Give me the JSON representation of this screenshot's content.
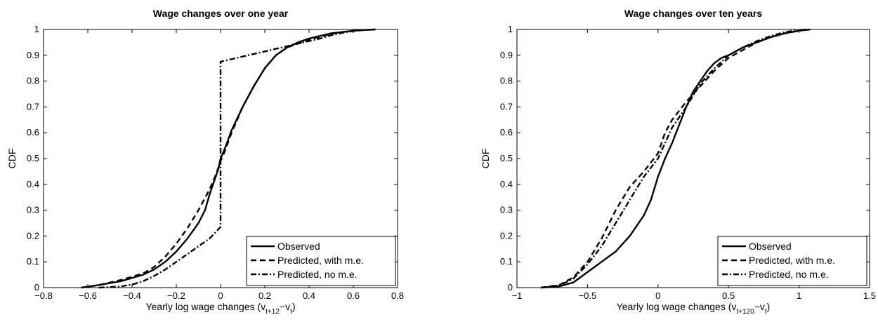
{
  "chart_data": [
    {
      "type": "line",
      "title": "Wage changes over one year",
      "xlabel": {
        "main": "Yearly log wage changes (v",
        "sub1": "t+12",
        "mid": "−v",
        "sub2": "t",
        "end": ")"
      },
      "ylabel": "CDF",
      "xlim": [
        -0.8,
        0.8
      ],
      "ylim": [
        0,
        1
      ],
      "xticks": [
        -0.8,
        -0.6,
        -0.4,
        -0.2,
        0,
        0.2,
        0.4,
        0.6,
        0.8
      ],
      "xtick_labels": [
        "−0.8",
        "−0.6",
        "−0.4",
        "−0.2",
        "0",
        "0.2",
        "0.4",
        "0.6",
        "0.8"
      ],
      "yticks": [
        0,
        0.1,
        0.2,
        0.3,
        0.4,
        0.5,
        0.6,
        0.7,
        0.8,
        0.9,
        1
      ],
      "ytick_labels": [
        "0",
        "0.1",
        "0.2",
        "0.3",
        "0.4",
        "0.5",
        "0.6",
        "0.7",
        "0.8",
        "0.9",
        "1"
      ],
      "grid": false,
      "legend_position": "bottom-right",
      "series": [
        {
          "name": "Observed",
          "style": "solid",
          "x": [
            -0.63,
            -0.55,
            -0.45,
            -0.35,
            -0.3,
            -0.25,
            -0.2,
            -0.15,
            -0.1,
            -0.07,
            -0.05,
            -0.03,
            -0.01,
            0,
            0.02,
            0.05,
            0.1,
            0.15,
            0.2,
            0.25,
            0.3,
            0.35,
            0.4,
            0.45,
            0.5,
            0.55,
            0.6,
            0.65,
            0.7
          ],
          "y": [
            0,
            0.01,
            0.025,
            0.05,
            0.07,
            0.1,
            0.14,
            0.19,
            0.25,
            0.3,
            0.36,
            0.41,
            0.46,
            0.5,
            0.54,
            0.61,
            0.7,
            0.78,
            0.85,
            0.9,
            0.93,
            0.95,
            0.965,
            0.975,
            0.985,
            0.99,
            0.995,
            0.998,
            1
          ]
        },
        {
          "name": "Predicted, with m.e.",
          "style": "dashed",
          "x": [
            -0.63,
            -0.55,
            -0.45,
            -0.35,
            -0.3,
            -0.25,
            -0.2,
            -0.15,
            -0.1,
            -0.05,
            -0.02,
            0,
            0.02,
            0.05,
            0.1,
            0.15,
            0.2,
            0.25,
            0.3,
            0.35,
            0.4,
            0.45,
            0.5,
            0.55,
            0.6,
            0.65,
            0.7
          ],
          "y": [
            0,
            0.01,
            0.03,
            0.055,
            0.08,
            0.12,
            0.17,
            0.23,
            0.3,
            0.38,
            0.44,
            0.49,
            0.53,
            0.6,
            0.7,
            0.78,
            0.85,
            0.9,
            0.93,
            0.945,
            0.96,
            0.972,
            0.983,
            0.99,
            0.995,
            0.998,
            1
          ]
        },
        {
          "name": "Predicted, no m.e.",
          "style": "dashdot",
          "x": [
            -0.55,
            -0.45,
            -0.4,
            -0.35,
            -0.3,
            -0.25,
            -0.2,
            -0.15,
            -0.1,
            -0.05,
            0,
            0,
            0.1,
            0.2,
            0.3,
            0.35,
            0.4,
            0.45,
            0.5,
            0.55,
            0.6,
            0.65,
            0.7
          ],
          "y": [
            0,
            0.005,
            0.012,
            0.025,
            0.045,
            0.07,
            0.1,
            0.13,
            0.16,
            0.19,
            0.235,
            0.875,
            0.895,
            0.915,
            0.935,
            0.945,
            0.955,
            0.965,
            0.978,
            0.987,
            0.994,
            0.998,
            1
          ]
        }
      ]
    },
    {
      "type": "line",
      "title": "Wage changes over ten years",
      "xlabel": {
        "main": "Yearly log wage changes (v",
        "sub1": "t+120",
        "mid": "−v",
        "sub2": "t",
        "end": ")"
      },
      "ylabel": "CDF",
      "xlim": [
        -1,
        1.5
      ],
      "ylim": [
        0,
        1
      ],
      "xticks": [
        -1,
        -0.5,
        0,
        0.5,
        1,
        1.5
      ],
      "xtick_labels": [
        "−1",
        "−0.5",
        "0",
        "0.5",
        "1",
        "1.5"
      ],
      "yticks": [
        0,
        0.1,
        0.2,
        0.3,
        0.4,
        0.5,
        0.6,
        0.7,
        0.8,
        0.9,
        1
      ],
      "ytick_labels": [
        "0",
        "0.1",
        "0.2",
        "0.3",
        "0.4",
        "0.5",
        "0.6",
        "0.7",
        "0.8",
        "0.9",
        "1"
      ],
      "grid": false,
      "legend_position": "bottom-right",
      "series": [
        {
          "name": "Observed",
          "style": "solid",
          "x": [
            -0.83,
            -0.7,
            -0.6,
            -0.5,
            -0.4,
            -0.3,
            -0.2,
            -0.1,
            -0.05,
            0,
            0.05,
            0.1,
            0.15,
            0.2,
            0.25,
            0.3,
            0.35,
            0.4,
            0.45,
            0.5,
            0.6,
            0.7,
            0.8,
            0.9,
            1.0,
            1.08
          ],
          "y": [
            0,
            0.005,
            0.02,
            0.06,
            0.1,
            0.14,
            0.2,
            0.28,
            0.34,
            0.43,
            0.5,
            0.56,
            0.63,
            0.7,
            0.76,
            0.8,
            0.84,
            0.87,
            0.89,
            0.9,
            0.93,
            0.95,
            0.97,
            0.985,
            0.995,
            1
          ]
        },
        {
          "name": "Predicted, with m.e.",
          "style": "dashed",
          "x": [
            -0.83,
            -0.7,
            -0.6,
            -0.5,
            -0.4,
            -0.3,
            -0.2,
            -0.1,
            0,
            0.05,
            0.1,
            0.2,
            0.3,
            0.4,
            0.5,
            0.6,
            0.7,
            0.8,
            0.9,
            1.0,
            1.05
          ],
          "y": [
            0,
            0.01,
            0.04,
            0.1,
            0.19,
            0.3,
            0.39,
            0.45,
            0.52,
            0.6,
            0.65,
            0.72,
            0.78,
            0.84,
            0.89,
            0.92,
            0.95,
            0.97,
            0.985,
            0.995,
            1
          ]
        },
        {
          "name": "Predicted, no m.e.",
          "style": "dashdot",
          "x": [
            -0.83,
            -0.7,
            -0.6,
            -0.5,
            -0.4,
            -0.3,
            -0.2,
            -0.1,
            0,
            0.1,
            0.2,
            0.3,
            0.4,
            0.5,
            0.6,
            0.7,
            0.8,
            0.9,
            1.0,
            1.05
          ],
          "y": [
            0,
            0.008,
            0.035,
            0.09,
            0.16,
            0.25,
            0.34,
            0.43,
            0.5,
            0.62,
            0.7,
            0.79,
            0.85,
            0.9,
            0.93,
            0.955,
            0.975,
            0.99,
            0.998,
            1
          ]
        }
      ]
    }
  ]
}
